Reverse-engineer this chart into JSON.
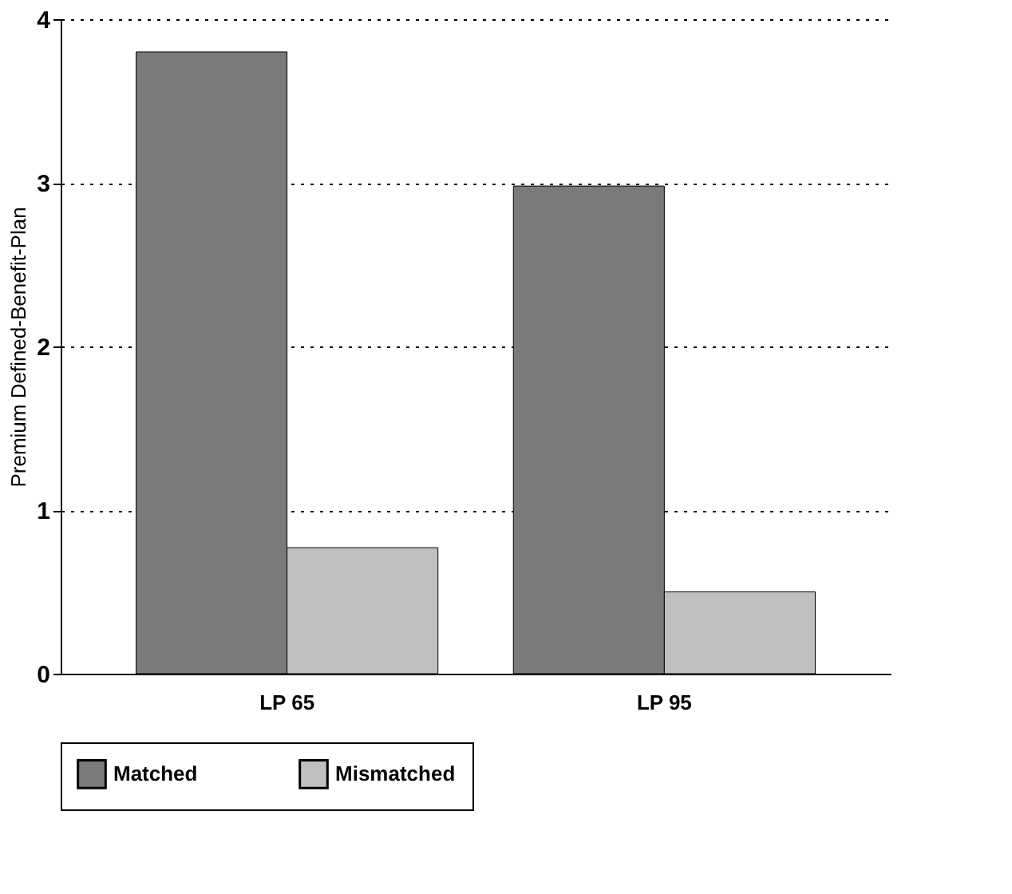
{
  "chart_data": {
    "type": "bar",
    "ylabel": "Premium Defined-Benefit-Plan",
    "categories": [
      "LP 65",
      "LP 95"
    ],
    "series": [
      {
        "name": "Matched",
        "color": "#7a7a7a",
        "values": [
          3.8,
          2.98
        ]
      },
      {
        "name": "Mismatched",
        "color": "#c0c0c0",
        "values": [
          0.77,
          0.5
        ]
      }
    ],
    "ylim": [
      0,
      4
    ],
    "yticks": [
      0,
      1,
      2,
      3,
      4
    ],
    "grid": "y",
    "legend": "bottom"
  }
}
